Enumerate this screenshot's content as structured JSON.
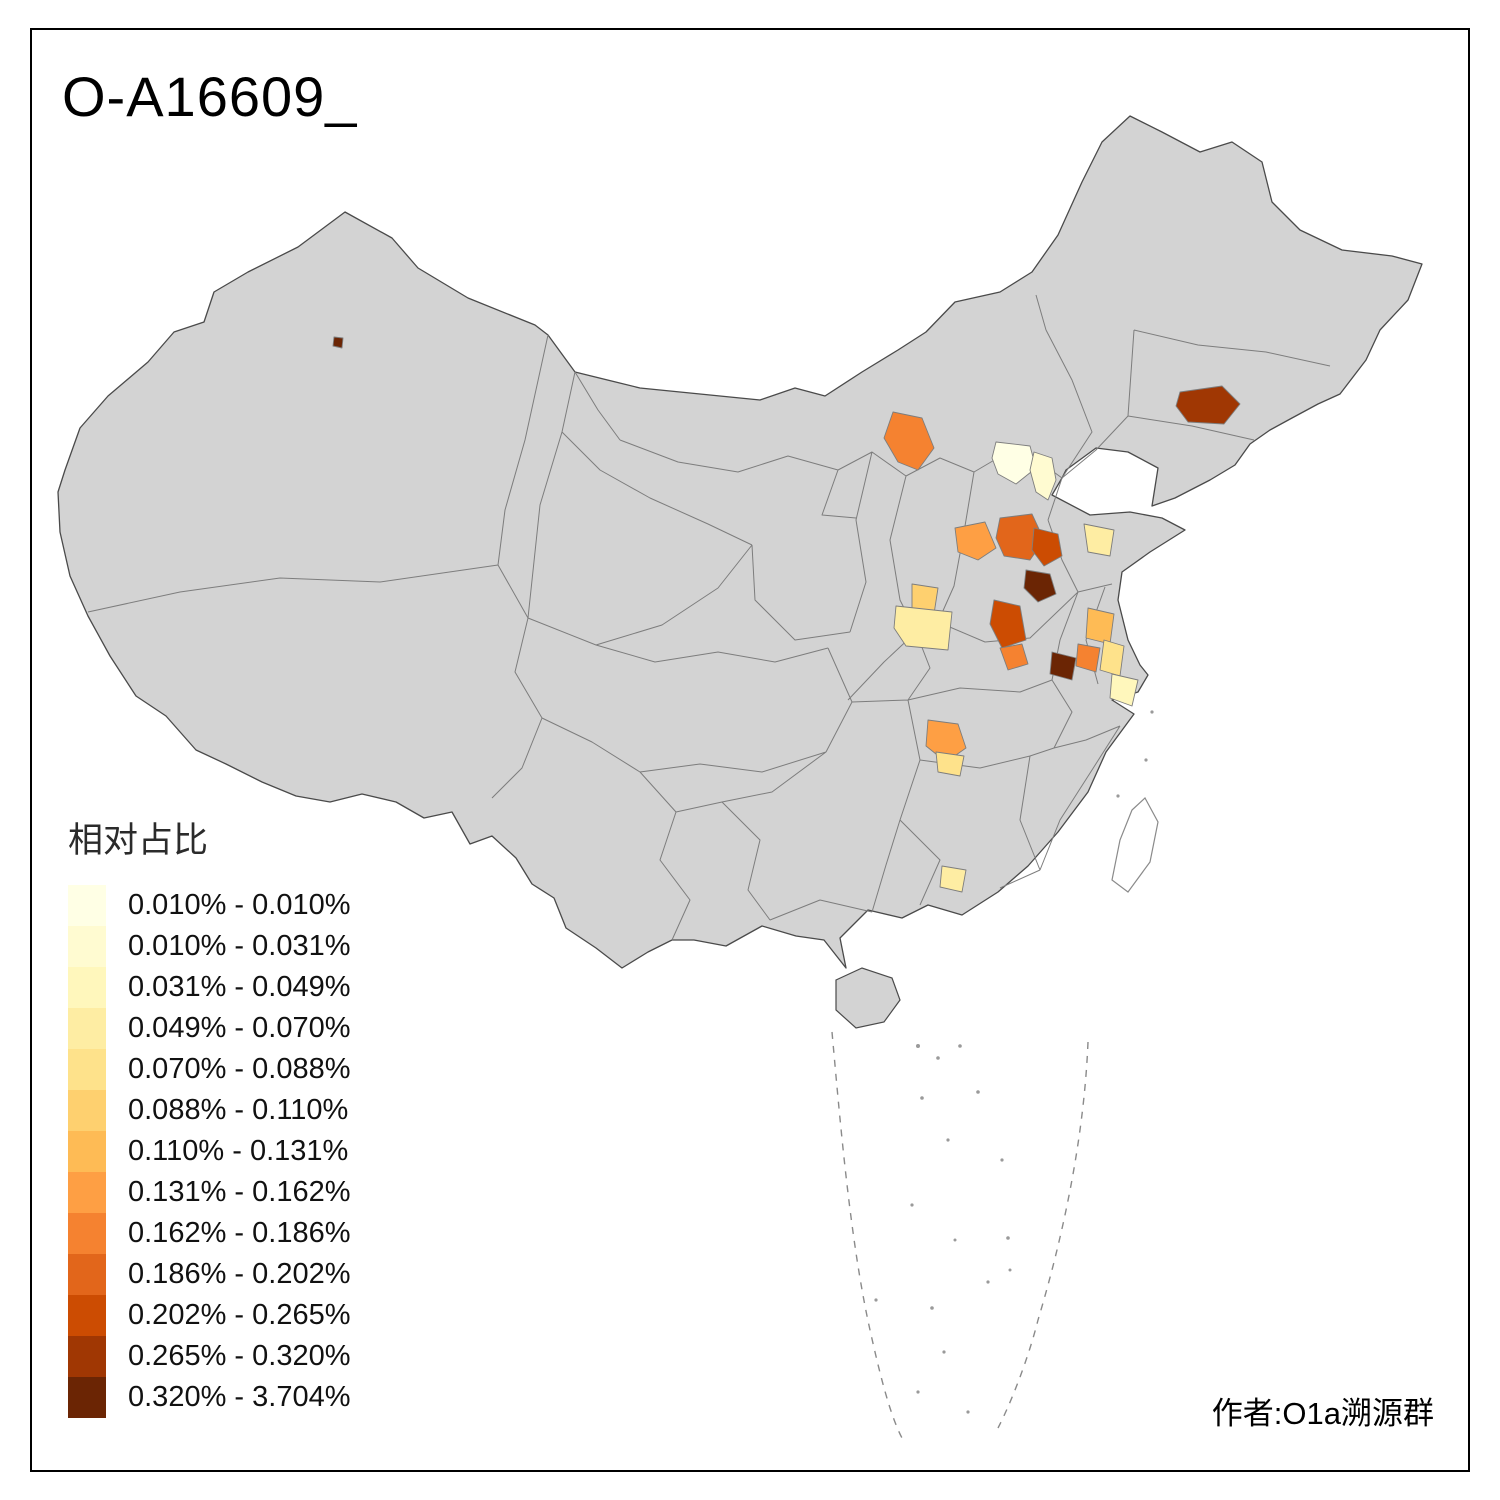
{
  "title": "O-A16609_",
  "author": "作者:O1a溯源群",
  "legend": {
    "title": "相对占比",
    "items": [
      {
        "label": "0.010% - 0.010%",
        "color": "#FFFFE5"
      },
      {
        "label": "0.010% - 0.031%",
        "color": "#FFFBD1"
      },
      {
        "label": "0.031% - 0.049%",
        "color": "#FFF7BC"
      },
      {
        "label": "0.049% - 0.070%",
        "color": "#FEEDA3"
      },
      {
        "label": "0.070% - 0.088%",
        "color": "#FEE28B"
      },
      {
        "label": "0.088% - 0.110%",
        "color": "#FED06F"
      },
      {
        "label": "0.110% - 0.131%",
        "color": "#FEBB55"
      },
      {
        "label": "0.131% - 0.162%",
        "color": "#FE9F44"
      },
      {
        "label": "0.162% - 0.186%",
        "color": "#F58230"
      },
      {
        "label": "0.186% - 0.202%",
        "color": "#E2661B"
      },
      {
        "label": "0.202% - 0.265%",
        "color": "#CC4C02"
      },
      {
        "label": "0.265% - 0.320%",
        "color": "#A03703"
      },
      {
        "label": "0.320% - 3.704%",
        "color": "#6B2504"
      }
    ]
  },
  "map": {
    "land_fill": "#D3D3D3",
    "outline_color": "#4A4A4A",
    "province_border_color": "#7D7D7D",
    "background": "#FFFFFF",
    "regions": [
      {
        "id": "xinjiang-spot",
        "bin": 13
      },
      {
        "id": "nei-mongol-ulanqab",
        "bin": 9
      },
      {
        "id": "beijing",
        "bin": 1
      },
      {
        "id": "tianjin",
        "bin": 2
      },
      {
        "id": "jilin-changchun",
        "bin": 12
      },
      {
        "id": "shanxi-west",
        "bin": 8
      },
      {
        "id": "shanxi-taiyuan",
        "bin": 10
      },
      {
        "id": "hebei-shijiazhuang",
        "bin": 11
      },
      {
        "id": "hebei-handan",
        "bin": 13
      },
      {
        "id": "shandong-west",
        "bin": 4
      },
      {
        "id": "shaanxi-yanan",
        "bin": 6
      },
      {
        "id": "shaanxi-guanzhong",
        "bin": 4
      },
      {
        "id": "henan-zhengzhou",
        "bin": 11
      },
      {
        "id": "henan-south",
        "bin": 9
      },
      {
        "id": "anhui-north",
        "bin": 13
      },
      {
        "id": "anhui-bengbu",
        "bin": 9
      },
      {
        "id": "jiangsu-xuzhou",
        "bin": 7
      },
      {
        "id": "jiangsu-coast",
        "bin": 5
      },
      {
        "id": "shanghai-area",
        "bin": 3
      },
      {
        "id": "hubei-south",
        "bin": 8
      },
      {
        "id": "hunan-north",
        "bin": 5
      },
      {
        "id": "guangdong-north",
        "bin": 4
      }
    ]
  }
}
